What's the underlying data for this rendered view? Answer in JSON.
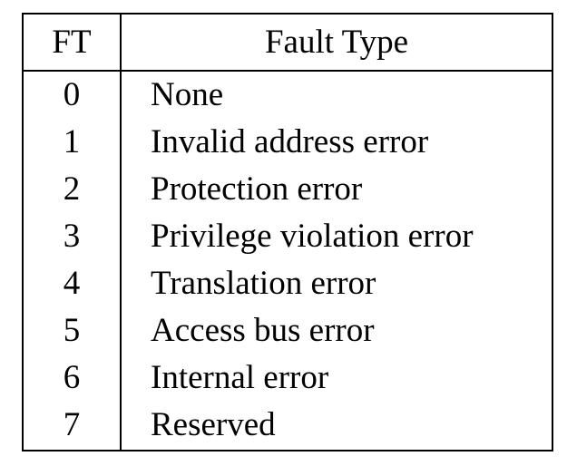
{
  "table": {
    "headers": {
      "ft": "FT",
      "fault_type": "Fault Type"
    },
    "rows": [
      {
        "ft": "0",
        "fault_type": "None"
      },
      {
        "ft": "1",
        "fault_type": "Invalid address error"
      },
      {
        "ft": "2",
        "fault_type": "Protection error"
      },
      {
        "ft": "3",
        "fault_type": "Privilege violation error"
      },
      {
        "ft": "4",
        "fault_type": "Translation error"
      },
      {
        "ft": "5",
        "fault_type": "Access bus error"
      },
      {
        "ft": "6",
        "fault_type": "Internal error"
      },
      {
        "ft": "7",
        "fault_type": "Reserved"
      }
    ]
  }
}
